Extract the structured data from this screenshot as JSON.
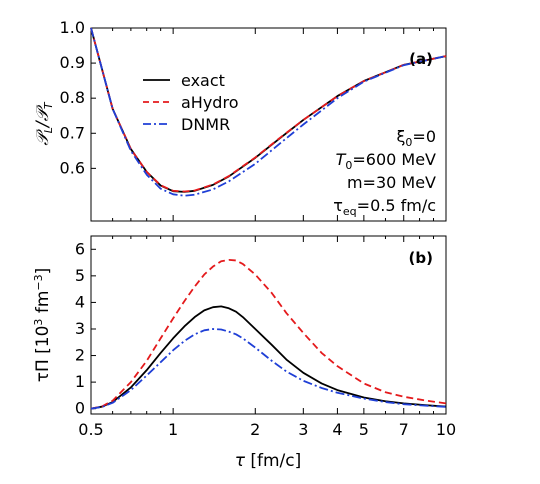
{
  "chart_data": [
    {
      "type": "line",
      "panel_label": "(a)",
      "ylabel": "𝒫_L/𝒫_T",
      "x_scale": "log",
      "xlim": [
        0.5,
        10
      ],
      "ylim": [
        0.45,
        1.0
      ],
      "yticks": [
        "0.6",
        "0.7",
        "0.8",
        "0.9",
        "1.0"
      ],
      "legend_position": "top-left",
      "annotations": [
        "ξ0=0",
        "T0=600 MeV",
        "m=30 MeV",
        "τeq=0.5 fm/c"
      ],
      "x": [
        0.5,
        0.6,
        0.7,
        0.8,
        0.9,
        1.0,
        1.1,
        1.2,
        1.4,
        1.6,
        2.0,
        2.5,
        3.0,
        4.0,
        5.0,
        7.0,
        10.0
      ],
      "series": [
        {
          "name": "exact",
          "color": "#000000",
          "dash": "solid",
          "values": [
            1.0,
            0.77,
            0.655,
            0.59,
            0.551,
            0.535,
            0.533,
            0.536,
            0.553,
            0.577,
            0.63,
            0.69,
            0.738,
            0.806,
            0.849,
            0.895,
            0.92
          ]
        },
        {
          "name": "aHydro",
          "color": "#e41a1c",
          "dash": "dashed",
          "values": [
            1.0,
            0.77,
            0.655,
            0.59,
            0.552,
            0.536,
            0.534,
            0.537,
            0.554,
            0.578,
            0.631,
            0.691,
            0.738,
            0.806,
            0.849,
            0.895,
            0.92
          ]
        },
        {
          "name": "DNMR",
          "color": "#1f3fd6",
          "dash": "dashdot",
          "values": [
            1.0,
            0.77,
            0.65,
            0.582,
            0.542,
            0.526,
            0.522,
            0.525,
            0.54,
            0.563,
            0.613,
            0.675,
            0.725,
            0.8,
            0.847,
            0.894,
            0.92
          ]
        }
      ]
    },
    {
      "type": "line",
      "panel_label": "(b)",
      "ylabel": "τΠ [10³ fm⁻³]",
      "xlabel": "τ [fm/c]",
      "x_scale": "log",
      "xlim": [
        0.5,
        10
      ],
      "ylim": [
        -0.2,
        6.5
      ],
      "xticks": [
        "0.5",
        "1",
        "2",
        "3",
        "4",
        "5",
        "7",
        "10"
      ],
      "yticks": [
        "0",
        "1",
        "2",
        "3",
        "4",
        "5",
        "6"
      ],
      "x": [
        0.5,
        0.55,
        0.6,
        0.7,
        0.8,
        0.9,
        1.0,
        1.1,
        1.2,
        1.3,
        1.4,
        1.5,
        1.6,
        1.7,
        1.8,
        2.0,
        2.3,
        2.6,
        3.0,
        3.5,
        4.0,
        5.0,
        6.0,
        7.0,
        8.5,
        10.0
      ],
      "series": [
        {
          "name": "exact",
          "color": "#000000",
          "dash": "solid",
          "values": [
            0.0,
            0.08,
            0.25,
            0.8,
            1.45,
            2.1,
            2.65,
            3.1,
            3.45,
            3.7,
            3.82,
            3.85,
            3.78,
            3.65,
            3.45,
            3.0,
            2.4,
            1.85,
            1.35,
            0.95,
            0.7,
            0.42,
            0.28,
            0.2,
            0.13,
            0.08
          ]
        },
        {
          "name": "aHydro",
          "color": "#e41a1c",
          "dash": "dashed",
          "values": [
            0.0,
            0.09,
            0.3,
            1.0,
            1.8,
            2.65,
            3.4,
            4.05,
            4.6,
            5.05,
            5.35,
            5.55,
            5.6,
            5.58,
            5.45,
            5.05,
            4.35,
            3.6,
            2.85,
            2.1,
            1.6,
            0.95,
            0.62,
            0.45,
            0.3,
            0.2
          ]
        },
        {
          "name": "DNMR",
          "color": "#1f3fd6",
          "dash": "dashdot",
          "values": [
            0.0,
            0.07,
            0.22,
            0.7,
            1.25,
            1.75,
            2.2,
            2.55,
            2.8,
            2.95,
            3.0,
            2.98,
            2.9,
            2.8,
            2.65,
            2.3,
            1.8,
            1.4,
            1.05,
            0.78,
            0.6,
            0.38,
            0.25,
            0.17,
            0.11,
            0.07
          ]
        }
      ]
    }
  ]
}
